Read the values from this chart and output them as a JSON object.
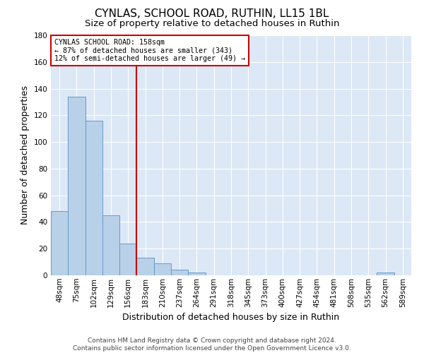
{
  "title": "CYNLAS, SCHOOL ROAD, RUTHIN, LL15 1BL",
  "subtitle": "Size of property relative to detached houses in Ruthin",
  "xlabel": "Distribution of detached houses by size in Ruthin",
  "ylabel": "Number of detached properties",
  "categories": [
    "48sqm",
    "75sqm",
    "102sqm",
    "129sqm",
    "156sqm",
    "183sqm",
    "210sqm",
    "237sqm",
    "264sqm",
    "291sqm",
    "318sqm",
    "345sqm",
    "373sqm",
    "400sqm",
    "427sqm",
    "454sqm",
    "481sqm",
    "508sqm",
    "535sqm",
    "562sqm",
    "589sqm"
  ],
  "values": [
    48,
    134,
    116,
    45,
    24,
    13,
    9,
    4,
    2,
    0,
    0,
    0,
    0,
    0,
    0,
    0,
    0,
    0,
    0,
    2,
    0
  ],
  "bar_color": "#b8d0e8",
  "bar_edge_color": "#6699cc",
  "vline_x": 4.5,
  "vline_color": "#cc0000",
  "ylim": [
    0,
    180
  ],
  "yticks": [
    0,
    20,
    40,
    60,
    80,
    100,
    120,
    140,
    160,
    180
  ],
  "annotation_title": "CYNLAS SCHOOL ROAD: 158sqm",
  "annotation_line1": "← 87% of detached houses are smaller (343)",
  "annotation_line2": "12% of semi-detached houses are larger (49) →",
  "annotation_box_color": "#ffffff",
  "annotation_box_edge": "#cc0000",
  "bg_color": "#dce8f5",
  "footer": "Contains HM Land Registry data © Crown copyright and database right 2024.\nContains public sector information licensed under the Open Government Licence v3.0.",
  "title_fontsize": 11,
  "subtitle_fontsize": 9.5,
  "axis_label_fontsize": 9,
  "tick_fontsize": 7.5,
  "footer_fontsize": 6.5
}
